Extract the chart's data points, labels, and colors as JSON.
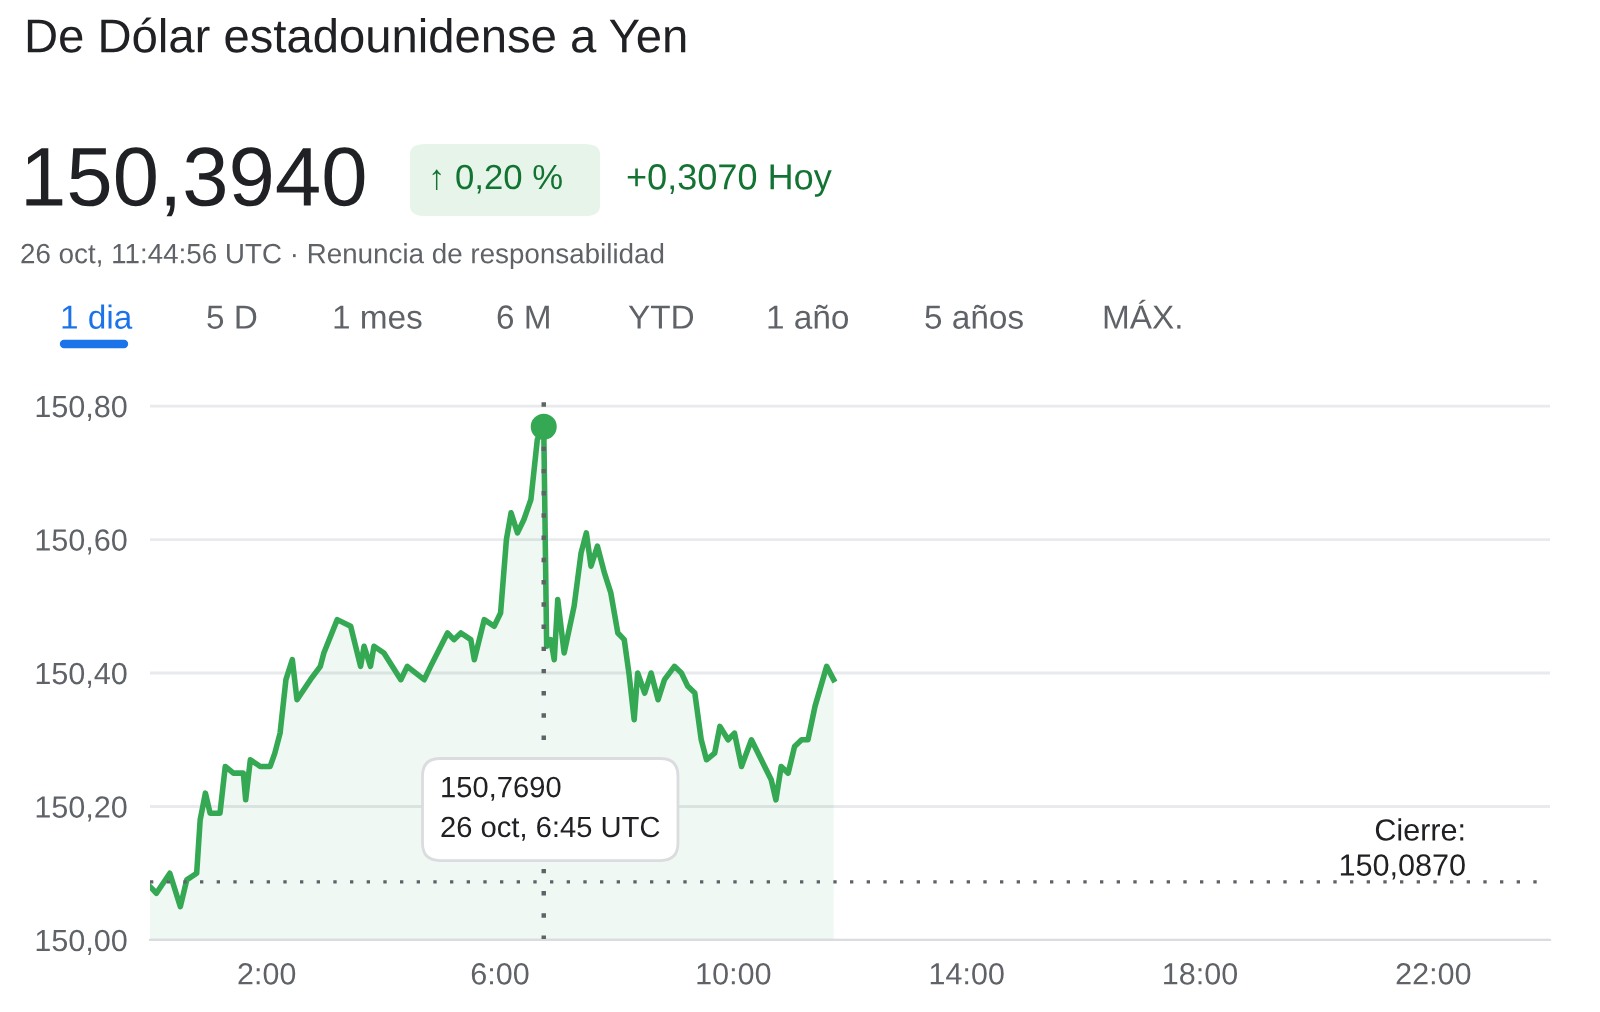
{
  "chart_data": {
    "type": "area",
    "title": "De Dólar estadounidense a Yen",
    "annotations": [
      "150,3940",
      "↑ 0,20 %",
      "+0,3070 Hoy",
      "26 oct, 11:44:56 UTC · Renuncia de responsabilidad",
      "1 dia",
      "5 D",
      "1 mes",
      "6 M",
      "YTD",
      "1 año",
      "5 años",
      "MÁX.",
      "150,7690\n26 oct, 6:45 UTC"
    ],
    "series": [
      {
        "color": "#34a853",
        "x": [
          0.0,
          0.11,
          0.34,
          0.52,
          0.63,
          0.8,
          0.86,
          0.95,
          1.03,
          1.2,
          1.29,
          1.43,
          1.6,
          1.64,
          1.72,
          1.89,
          2.06,
          2.14,
          2.23,
          2.33,
          2.44,
          2.52,
          2.75,
          2.92,
          2.98,
          3.21,
          3.44,
          3.61,
          3.67,
          3.78,
          3.84,
          4.01,
          4.3,
          4.41,
          4.7,
          4.81,
          5.1,
          5.21,
          5.33,
          5.5,
          5.56,
          5.73,
          5.9,
          6.01,
          6.11,
          6.19,
          6.3,
          6.41,
          6.53,
          6.64,
          6.75,
          6.8,
          6.87,
          6.93,
          6.99,
          7.1,
          7.27,
          7.39,
          7.48,
          7.56,
          7.67,
          7.79,
          7.9,
          8.02,
          8.13,
          8.21,
          8.3,
          8.36,
          8.48,
          8.59,
          8.71,
          8.82,
          8.99,
          9.11,
          9.22,
          9.34,
          9.45,
          9.54,
          9.68,
          9.77,
          9.91,
          10.02,
          10.14,
          10.31,
          10.48,
          10.65,
          10.73,
          10.82,
          10.94,
          11.05,
          11.17,
          11.28,
          11.4,
          11.6,
          11.72
        ],
        "values": [
          150.08,
          150.07,
          150.1,
          150.05,
          150.09,
          150.1,
          150.18,
          150.22,
          150.19,
          150.19,
          150.26,
          150.25,
          150.25,
          150.21,
          150.27,
          150.26,
          150.26,
          150.28,
          150.31,
          150.39,
          150.42,
          150.36,
          150.39,
          150.41,
          150.43,
          150.48,
          150.47,
          150.41,
          150.44,
          150.41,
          150.44,
          150.43,
          150.39,
          150.41,
          150.39,
          150.41,
          150.46,
          150.45,
          150.46,
          150.45,
          150.42,
          150.48,
          150.47,
          150.49,
          150.6,
          150.64,
          150.61,
          150.63,
          150.66,
          150.75,
          150.769,
          150.44,
          150.45,
          150.42,
          150.51,
          150.43,
          150.5,
          150.58,
          150.61,
          150.56,
          150.59,
          150.55,
          150.52,
          150.46,
          150.45,
          150.4,
          150.33,
          150.4,
          150.37,
          150.4,
          150.36,
          150.39,
          150.41,
          150.4,
          150.38,
          150.37,
          150.3,
          150.27,
          150.28,
          150.32,
          150.3,
          150.31,
          150.26,
          150.3,
          150.27,
          150.24,
          150.21,
          150.26,
          150.25,
          150.29,
          150.3,
          150.3,
          150.35,
          150.41,
          150.39
        ]
      },
      {
        "type": "scatter",
        "color": "#34a853",
        "x": [
          6.75
        ],
        "values": [
          150.769
        ]
      }
    ],
    "xlim": [
      0,
      24
    ],
    "ylim": [
      150.0,
      150.83
    ],
    "xticks": [
      {
        "value": 2,
        "label": "2:00"
      },
      {
        "value": 6,
        "label": "6:00"
      },
      {
        "value": 10,
        "label": "10:00"
      },
      {
        "value": 14,
        "label": "14:00"
      },
      {
        "value": 18,
        "label": "18:00"
      },
      {
        "value": 22,
        "label": "22:00"
      }
    ],
    "yticks": [
      {
        "value": 150.0,
        "label": "150,00"
      },
      {
        "value": 150.2,
        "label": "150,20"
      },
      {
        "value": 150.4,
        "label": "150,40"
      },
      {
        "value": 150.6,
        "label": "150,60"
      },
      {
        "value": 150.8,
        "label": "150,80"
      }
    ],
    "grid": "y",
    "ref_lines": [
      {
        "axis": "y",
        "value": 150.087,
        "label": "Cierre:\n150,0870",
        "line_style": "dotted",
        "color": "#5f6368"
      },
      {
        "axis": "x",
        "value": 6.75,
        "label": null,
        "line_style": "dotted",
        "color": "#5f6368"
      }
    ]
  }
}
